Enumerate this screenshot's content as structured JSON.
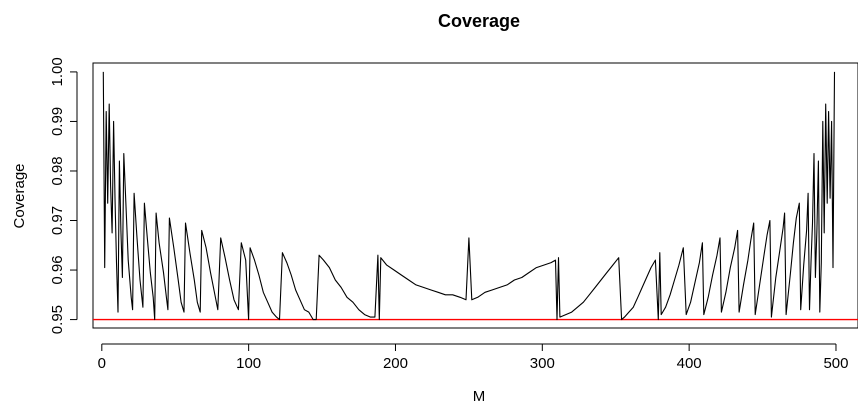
{
  "chart_data": {
    "type": "line",
    "title": "Coverage",
    "xlabel": "M",
    "ylabel": "Coverage",
    "xlim": [
      -6,
      515
    ],
    "ylim": [
      0.9483,
      1.0018
    ],
    "x_ticks": [
      0,
      100,
      200,
      300,
      400,
      500
    ],
    "x_tick_labels": [
      "0",
      "100",
      "200",
      "300",
      "400",
      "500"
    ],
    "y_ticks": [
      0.95,
      0.96,
      0.97,
      0.98,
      0.99,
      1.0
    ],
    "y_tick_labels": [
      "0.95",
      "0.96",
      "0.97",
      "0.98",
      "0.99",
      "1.00"
    ],
    "grid": false,
    "series": [
      {
        "color": "#000000",
        "points": [
          [
            1,
            1.0
          ],
          [
            2,
            0.9605
          ],
          [
            3,
            0.992
          ],
          [
            4,
            0.9735
          ],
          [
            5,
            0.9935
          ],
          [
            6,
            0.977
          ],
          [
            7,
            0.9675
          ],
          [
            8,
            0.99
          ],
          [
            9,
            0.9745
          ],
          [
            10,
            0.9615
          ],
          [
            11,
            0.9515
          ],
          [
            12,
            0.982
          ],
          [
            13,
            0.968
          ],
          [
            14,
            0.9585
          ],
          [
            15,
            0.9835
          ],
          [
            17,
            0.969
          ],
          [
            18,
            0.962
          ],
          [
            20,
            0.9545
          ],
          [
            21,
            0.952
          ],
          [
            22,
            0.9755
          ],
          [
            24,
            0.9665
          ],
          [
            26,
            0.958
          ],
          [
            28,
            0.9525
          ],
          [
            29,
            0.9735
          ],
          [
            31,
            0.9665
          ],
          [
            33,
            0.9595
          ],
          [
            35,
            0.9545
          ],
          [
            36,
            0.95
          ],
          [
            37,
            0.9715
          ],
          [
            39,
            0.9655
          ],
          [
            42,
            0.9595
          ],
          [
            44,
            0.9545
          ],
          [
            45,
            0.952
          ],
          [
            46,
            0.9705
          ],
          [
            49,
            0.9645
          ],
          [
            52,
            0.958
          ],
          [
            54,
            0.9535
          ],
          [
            56,
            0.9515
          ],
          [
            57,
            0.9695
          ],
          [
            60,
            0.9635
          ],
          [
            63,
            0.958
          ],
          [
            65,
            0.9535
          ],
          [
            67,
            0.9515
          ],
          [
            68,
            0.968
          ],
          [
            71,
            0.9645
          ],
          [
            74,
            0.9595
          ],
          [
            77,
            0.955
          ],
          [
            79,
            0.952
          ],
          [
            81,
            0.9665
          ],
          [
            84,
            0.9625
          ],
          [
            87,
            0.958
          ],
          [
            90,
            0.954
          ],
          [
            93,
            0.952
          ],
          [
            95,
            0.9655
          ],
          [
            98,
            0.962
          ],
          [
            100,
            0.95
          ],
          [
            101,
            0.9645
          ],
          [
            104,
            0.962
          ],
          [
            107,
            0.959
          ],
          [
            110,
            0.9555
          ],
          [
            113,
            0.9535
          ],
          [
            116,
            0.9515
          ],
          [
            119,
            0.9505
          ],
          [
            121,
            0.95
          ],
          [
            123,
            0.9635
          ],
          [
            126,
            0.9615
          ],
          [
            129,
            0.959
          ],
          [
            132,
            0.956
          ],
          [
            135,
            0.954
          ],
          [
            138,
            0.952
          ],
          [
            141,
            0.9515
          ],
          [
            144,
            0.95
          ],
          [
            146,
            0.95
          ],
          [
            148,
            0.963
          ],
          [
            151,
            0.962
          ],
          [
            155,
            0.9605
          ],
          [
            159,
            0.958
          ],
          [
            163,
            0.9565
          ],
          [
            167,
            0.9545
          ],
          [
            171,
            0.9535
          ],
          [
            175,
            0.952
          ],
          [
            179,
            0.951
          ],
          [
            183,
            0.9505
          ],
          [
            186,
            0.9505
          ],
          [
            188,
            0.963
          ],
          [
            189,
            0.95
          ],
          [
            190,
            0.9625
          ],
          [
            194,
            0.961
          ],
          [
            199,
            0.96
          ],
          [
            204,
            0.959
          ],
          [
            209,
            0.958
          ],
          [
            214,
            0.957
          ],
          [
            219,
            0.9565
          ],
          [
            224,
            0.956
          ],
          [
            229,
            0.9555
          ],
          [
            234,
            0.955
          ],
          [
            239,
            0.955
          ],
          [
            244,
            0.9545
          ],
          [
            248,
            0.954
          ],
          [
            250,
            0.9665
          ],
          [
            252,
            0.954
          ],
          [
            256,
            0.9545
          ],
          [
            261,
            0.9555
          ],
          [
            266,
            0.956
          ],
          [
            271,
            0.9565
          ],
          [
            276,
            0.957
          ],
          [
            281,
            0.958
          ],
          [
            286,
            0.9585
          ],
          [
            291,
            0.9595
          ],
          [
            296,
            0.9605
          ],
          [
            301,
            0.961
          ],
          [
            306,
            0.9615
          ],
          [
            309,
            0.962
          ],
          [
            310,
            0.95
          ],
          [
            311,
            0.9625
          ],
          [
            312,
            0.9505
          ],
          [
            316,
            0.951
          ],
          [
            320,
            0.9515
          ],
          [
            324,
            0.9525
          ],
          [
            328,
            0.9535
          ],
          [
            332,
            0.955
          ],
          [
            336,
            0.9565
          ],
          [
            340,
            0.958
          ],
          [
            344,
            0.9595
          ],
          [
            348,
            0.961
          ],
          [
            352,
            0.9625
          ],
          [
            354,
            0.95
          ],
          [
            356,
            0.9505
          ],
          [
            359,
            0.9515
          ],
          [
            362,
            0.9525
          ],
          [
            365,
            0.9545
          ],
          [
            368,
            0.9565
          ],
          [
            371,
            0.9585
          ],
          [
            374,
            0.9605
          ],
          [
            377,
            0.962
          ],
          [
            379,
            0.95
          ],
          [
            380,
            0.9635
          ],
          [
            381,
            0.951
          ],
          [
            384,
            0.9525
          ],
          [
            387,
            0.955
          ],
          [
            390,
            0.958
          ],
          [
            393,
            0.961
          ],
          [
            396,
            0.9645
          ],
          [
            398,
            0.951
          ],
          [
            401,
            0.9535
          ],
          [
            404,
            0.9575
          ],
          [
            407,
            0.9615
          ],
          [
            409,
            0.9655
          ],
          [
            410,
            0.951
          ],
          [
            413,
            0.9545
          ],
          [
            416,
            0.959
          ],
          [
            419,
            0.963
          ],
          [
            421,
            0.9665
          ],
          [
            422,
            0.9515
          ],
          [
            425,
            0.9555
          ],
          [
            428,
            0.9605
          ],
          [
            431,
            0.9645
          ],
          [
            433,
            0.968
          ],
          [
            434,
            0.9515
          ],
          [
            437,
            0.957
          ],
          [
            440,
            0.962
          ],
          [
            442,
            0.966
          ],
          [
            444,
            0.9695
          ],
          [
            445,
            0.951
          ],
          [
            448,
            0.957
          ],
          [
            451,
            0.963
          ],
          [
            453,
            0.967
          ],
          [
            455,
            0.97
          ],
          [
            456,
            0.9505
          ],
          [
            459,
            0.9585
          ],
          [
            462,
            0.9645
          ],
          [
            464,
            0.9685
          ],
          [
            465,
            0.9715
          ],
          [
            466,
            0.951
          ],
          [
            469,
            0.9595
          ],
          [
            471,
            0.9655
          ],
          [
            473,
            0.9705
          ],
          [
            475,
            0.9735
          ],
          [
            476,
            0.952
          ],
          [
            478,
            0.961
          ],
          [
            480,
            0.968
          ],
          [
            481,
            0.9755
          ],
          [
            482,
            0.952
          ],
          [
            483,
            0.9615
          ],
          [
            484,
            0.9695
          ],
          [
            485,
            0.9835
          ],
          [
            486,
            0.9585
          ],
          [
            487,
            0.968
          ],
          [
            488,
            0.982
          ],
          [
            489,
            0.9515
          ],
          [
            490,
            0.9615
          ],
          [
            491,
            0.99
          ],
          [
            492,
            0.9675
          ],
          [
            493,
            0.9935
          ],
          [
            494,
            0.9735
          ],
          [
            495,
            0.992
          ],
          [
            496,
            0.9745
          ],
          [
            497,
            0.99
          ],
          [
            498,
            0.9605
          ],
          [
            499,
            1.0
          ]
        ]
      },
      {
        "color": "#ff0000",
        "type": "hline",
        "y": 0.95
      }
    ]
  }
}
